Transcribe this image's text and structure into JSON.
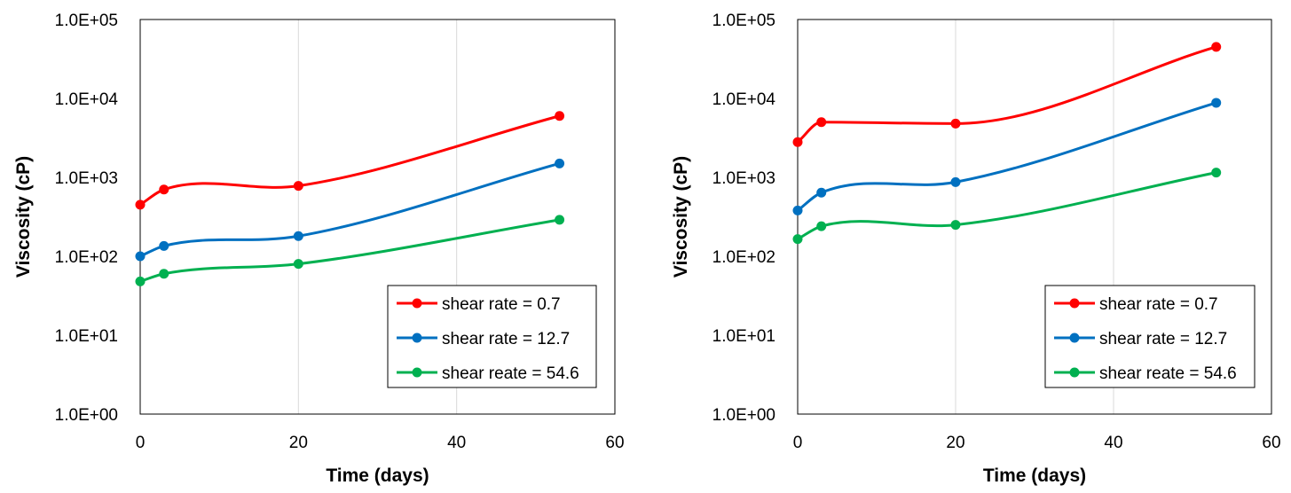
{
  "chart_data": [
    {
      "type": "line",
      "xlabel": "Time (days)",
      "ylabel": "Viscosity (cP)",
      "xlim": [
        0,
        60
      ],
      "xticks": [
        "0",
        "20",
        "40",
        "60"
      ],
      "ylim": [
        1,
        100000
      ],
      "yscale": "log",
      "yticks": [
        "1.0E+00",
        "1.0E+01",
        "1.0E+02",
        "1.0E+03",
        "1.0E+04",
        "1.0E+05"
      ],
      "grid": "vertical",
      "legend_position": "bottom-right",
      "x": [
        0,
        3,
        20,
        53
      ],
      "series": [
        {
          "name": "shear rate = 0.7",
          "color": "#ff0000",
          "values": [
            450,
            700,
            780,
            6000
          ]
        },
        {
          "name": "shear rate = 12.7",
          "color": "#0070c0",
          "values": [
            100,
            135,
            180,
            1500
          ]
        },
        {
          "name": "shear reate = 54.6",
          "color": "#00b050",
          "values": [
            48,
            60,
            80,
            290
          ]
        }
      ]
    },
    {
      "type": "line",
      "xlabel": "Time (days)",
      "ylabel": "Viscosity (cP)",
      "xlim": [
        0,
        60
      ],
      "xticks": [
        "0",
        "20",
        "40",
        "60"
      ],
      "ylim": [
        1,
        100000
      ],
      "yscale": "log",
      "yticks": [
        "1.0E+00",
        "1.0E+01",
        "1.0E+02",
        "1.0E+03",
        "1.0E+04",
        "1.0E+05"
      ],
      "grid": "vertical",
      "legend_position": "bottom-right",
      "x": [
        0,
        3,
        20,
        53
      ],
      "series": [
        {
          "name": "shear rate = 0.7",
          "color": "#ff0000",
          "values": [
            2800,
            5000,
            4800,
            45000
          ]
        },
        {
          "name": "shear rate = 12.7",
          "color": "#0070c0",
          "values": [
            380,
            640,
            870,
            8800
          ]
        },
        {
          "name": "shear reate = 54.6",
          "color": "#00b050",
          "values": [
            165,
            240,
            250,
            1150
          ]
        }
      ]
    }
  ]
}
